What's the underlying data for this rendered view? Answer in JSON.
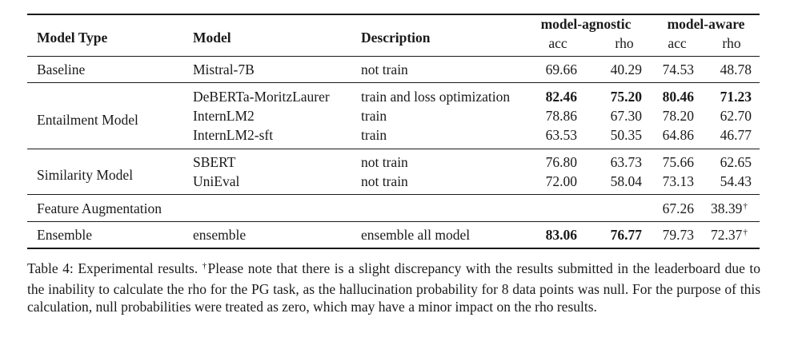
{
  "table": {
    "headers": {
      "model_type": "Model Type",
      "model": "Model",
      "description": "Description",
      "group_agnostic": "model-agnostic",
      "group_aware": "model-aware",
      "acc": "acc",
      "rho": "rho"
    },
    "rows": [
      {
        "type": "Baseline",
        "model": "Mistral-7B",
        "desc": "not train",
        "ag_acc": "69.66",
        "ag_rho": "40.29",
        "aw_acc": "74.53",
        "aw_rho": "48.78"
      },
      {
        "type": "Entailment Model",
        "model": "DeBERTa-MoritzLaurer",
        "desc": "train and loss optimization",
        "ag_acc": "82.46",
        "ag_rho": "75.20",
        "aw_acc": "80.46",
        "aw_rho": "71.23"
      },
      {
        "type": "",
        "model": "InternLM2",
        "desc": "train",
        "ag_acc": "78.86",
        "ag_rho": "67.30",
        "aw_acc": "78.20",
        "aw_rho": "62.70"
      },
      {
        "type": "",
        "model": "InternLM2-sft",
        "desc": "train",
        "ag_acc": "63.53",
        "ag_rho": "50.35",
        "aw_acc": "64.86",
        "aw_rho": "46.77"
      },
      {
        "type": "Similarity Model",
        "model": "SBERT",
        "desc": "not train",
        "ag_acc": "76.80",
        "ag_rho": "63.73",
        "aw_acc": "75.66",
        "aw_rho": "62.65"
      },
      {
        "type": "",
        "model": "UniEval",
        "desc": "not train",
        "ag_acc": "72.00",
        "ag_rho": "58.04",
        "aw_acc": "73.13",
        "aw_rho": "54.43"
      },
      {
        "type": "Feature Augmentation",
        "model": "",
        "desc": "",
        "ag_acc": "",
        "ag_rho": "",
        "aw_acc": "67.26",
        "aw_rho": "38.39"
      },
      {
        "type": "Ensemble",
        "model": "ensemble",
        "desc": "ensemble all model",
        "ag_acc": "83.06",
        "ag_rho": "76.77",
        "aw_acc": "79.73",
        "aw_rho": "72.37"
      }
    ],
    "dagger": "†"
  },
  "caption": {
    "label": "Table 4: Experimental results. ",
    "dagger": "†",
    "text": "Please note that there is a slight discrepancy with the results submitted in the leaderboard due to the inability to calculate the rho for the PG task, as the hallucination probability for 8 data points was null. For the purpose of this calculation, null probabilities were treated as zero, which may have a minor impact on the rho results."
  }
}
